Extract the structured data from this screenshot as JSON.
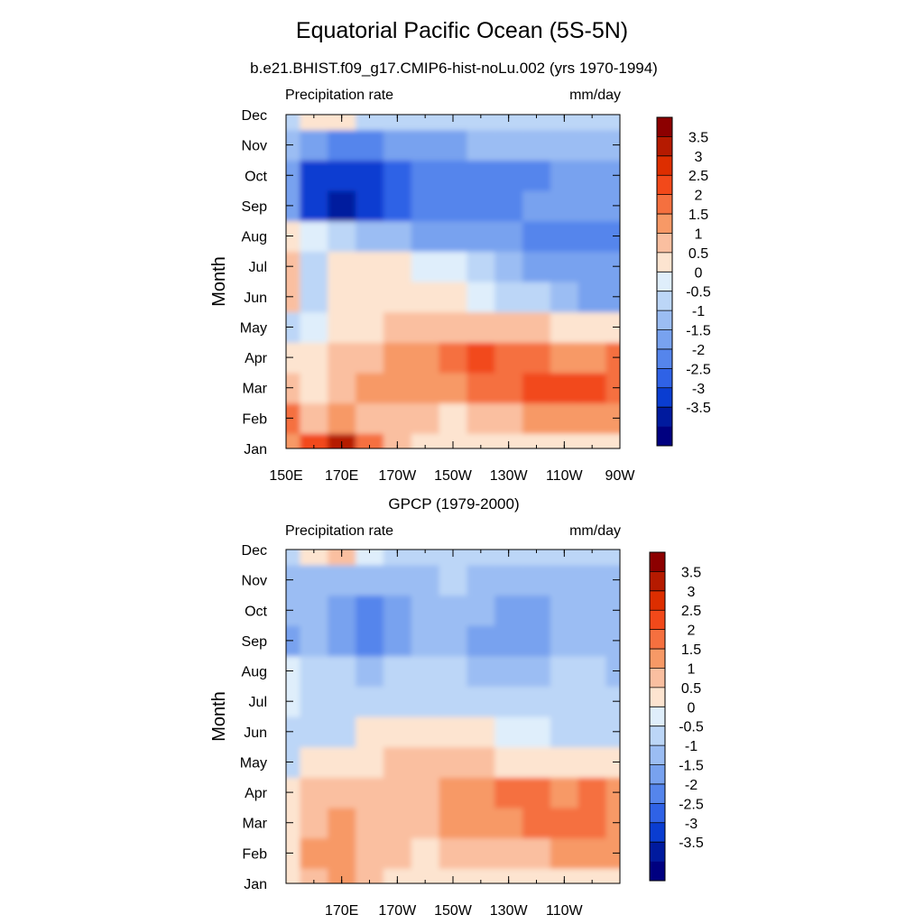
{
  "title": "Equatorial Pacific Ocean (5S-5N)",
  "colormap": {
    "levels": [
      "3.5",
      "3",
      "2.5",
      "2",
      "1.5",
      "1",
      "0.5",
      "0",
      "-0.5",
      "-1",
      "-1.5",
      "-2",
      "-2.5",
      "-3",
      "-3.5"
    ],
    "colors": [
      "#8c0000",
      "#b51a00",
      "#dd2e00",
      "#f2491a",
      "#f5703f",
      "#f79966",
      "#fabfa0",
      "#fde4d0",
      "#dfeefb",
      "#bcd6f7",
      "#9bbdf3",
      "#78a2ef",
      "#5585ec",
      "#2f62e6",
      "#0a3dd1",
      "#001a9e",
      "#000080"
    ]
  },
  "chart_data": [
    {
      "type": "heatmap",
      "subtitle": "b.e21.BHIST.f09_g17.CMIP6-hist-noLu.002 (yrs 1970-1994)",
      "left_label": "Precipitation rate",
      "right_label": "mm/day",
      "ylabel": "Month",
      "xlabel": "",
      "x_tick_labels": [
        "150E",
        "170E",
        "170W",
        "150W",
        "130W",
        "110W",
        "90W"
      ],
      "y_tick_labels": [
        "Jan",
        "Feb",
        "Mar",
        "Apr",
        "May",
        "Jun",
        "Jul",
        "Aug",
        "Sep",
        "Oct",
        "Nov",
        "Dec"
      ],
      "colorbar_labels": [
        "3.5",
        "3",
        "2.5",
        "2",
        "1.5",
        "1",
        "0.5",
        "0",
        "-0.5",
        "-1",
        "-1.5",
        "-2",
        "-2.5",
        "-3",
        "-3.5"
      ],
      "xlim": [
        150,
        270
      ],
      "x_units": "degrees east longitude",
      "x": [
        150,
        160,
        170,
        180,
        190,
        200,
        210,
        220,
        230,
        240,
        250,
        260,
        270
      ],
      "y": [
        "Jan",
        "Feb",
        "Mar",
        "Apr",
        "May",
        "Jun",
        "Jul",
        "Aug",
        "Sep",
        "Oct",
        "Nov",
        "Dec"
      ],
      "z": [
        [
          1.5,
          2.5,
          3.5,
          2.0,
          1.0,
          0.5,
          0.5,
          0.5,
          0.5,
          0.5,
          0.5,
          0.5,
          0.5
        ],
        [
          2.0,
          1.0,
          1.5,
          1.0,
          1.0,
          1.0,
          0.5,
          1.0,
          1.0,
          1.5,
          1.5,
          1.5,
          1.5
        ],
        [
          1.0,
          0.5,
          1.0,
          1.5,
          1.5,
          1.5,
          1.5,
          2.0,
          2.0,
          2.5,
          2.5,
          2.5,
          2.0
        ],
        [
          0.5,
          0.5,
          1.0,
          1.0,
          1.5,
          1.5,
          2.0,
          2.5,
          2.0,
          2.0,
          1.5,
          1.5,
          2.0
        ],
        [
          -0.5,
          0.0,
          0.5,
          0.5,
          1.0,
          1.0,
          1.0,
          1.0,
          1.0,
          1.0,
          0.5,
          0.5,
          0.5
        ],
        [
          1.0,
          -0.5,
          0.5,
          0.5,
          0.5,
          0.5,
          0.5,
          0.0,
          -0.5,
          -0.5,
          -1.0,
          -1.5,
          -1.5
        ],
        [
          1.0,
          -0.5,
          0.5,
          0.5,
          0.5,
          0.0,
          0.0,
          -0.5,
          -1.0,
          -1.5,
          -1.5,
          -1.5,
          -1.5
        ],
        [
          0.5,
          0.0,
          -0.5,
          -1.0,
          -1.0,
          -1.5,
          -1.5,
          -1.5,
          -1.5,
          -2.0,
          -2.0,
          -2.0,
          -2.0
        ],
        [
          -1.5,
          -3.0,
          -3.5,
          -3.0,
          -2.5,
          -2.0,
          -2.0,
          -2.0,
          -2.0,
          -1.5,
          -1.5,
          -1.5,
          -1.5
        ],
        [
          -1.5,
          -3.0,
          -3.0,
          -3.0,
          -2.5,
          -2.0,
          -2.0,
          -2.0,
          -2.0,
          -2.0,
          -1.5,
          -1.5,
          -1.5
        ],
        [
          -1.0,
          -1.5,
          -2.0,
          -2.0,
          -1.5,
          -1.5,
          -1.5,
          -1.0,
          -1.0,
          -1.0,
          -1.0,
          -1.0,
          -1.0
        ],
        [
          -0.5,
          0.5,
          0.5,
          -0.5,
          -0.5,
          -0.5,
          -0.5,
          -0.5,
          -0.5,
          -0.5,
          -0.5,
          -0.5,
          -0.5
        ]
      ]
    },
    {
      "type": "heatmap",
      "subtitle": "GPCP (1979-2000)",
      "left_label": "Precipitation rate",
      "right_label": "mm/day",
      "ylabel": "Month",
      "xlabel": "",
      "x_tick_labels": [
        "170E",
        "170W",
        "150W",
        "130W",
        "110W"
      ],
      "y_tick_labels": [
        "Jan",
        "Feb",
        "Mar",
        "Apr",
        "May",
        "Jun",
        "Jul",
        "Aug",
        "Sep",
        "Oct",
        "Nov",
        "Dec"
      ],
      "colorbar_labels": [
        "3.5",
        "3",
        "2.5",
        "2",
        "1.5",
        "1",
        "0.5",
        "0",
        "-0.5",
        "-1",
        "-1.5",
        "-2",
        "-2.5",
        "-3",
        "-3.5"
      ],
      "xlim": [
        150,
        270
      ],
      "x_units": "degrees east longitude",
      "x": [
        150,
        160,
        170,
        180,
        190,
        200,
        210,
        220,
        230,
        240,
        250,
        260,
        270
      ],
      "y": [
        "Jan",
        "Feb",
        "Mar",
        "Apr",
        "May",
        "Jun",
        "Jul",
        "Aug",
        "Sep",
        "Oct",
        "Nov",
        "Dec"
      ],
      "z": [
        [
          0.5,
          1.0,
          1.5,
          1.0,
          0.5,
          0.5,
          0.5,
          0.5,
          0.5,
          0.5,
          0.5,
          0.5,
          0.5
        ],
        [
          0.5,
          1.5,
          1.5,
          1.0,
          1.0,
          0.5,
          1.0,
          1.0,
          1.0,
          1.0,
          1.5,
          1.5,
          1.5
        ],
        [
          0.5,
          1.0,
          1.5,
          1.0,
          1.0,
          1.0,
          1.5,
          1.5,
          1.5,
          2.0,
          2.0,
          2.0,
          1.5
        ],
        [
          0.5,
          1.0,
          1.0,
          1.0,
          1.0,
          1.0,
          1.5,
          1.5,
          2.0,
          2.0,
          1.5,
          2.0,
          1.5
        ],
        [
          -0.5,
          0.5,
          0.5,
          0.5,
          1.0,
          1.0,
          1.0,
          1.0,
          0.5,
          0.5,
          0.5,
          0.5,
          0.5
        ],
        [
          -0.5,
          -0.5,
          -0.5,
          0.5,
          0.5,
          0.5,
          0.5,
          0.5,
          0.0,
          0.0,
          -0.5,
          -0.5,
          -0.5
        ],
        [
          0.0,
          -0.5,
          -0.5,
          -0.5,
          -0.5,
          -0.5,
          -0.5,
          -0.5,
          -0.5,
          -0.5,
          -0.5,
          -0.5,
          -0.5
        ],
        [
          0.0,
          -0.5,
          -0.5,
          -1.0,
          -0.5,
          -0.5,
          -0.5,
          -1.0,
          -1.0,
          -1.0,
          -0.5,
          -0.5,
          -1.0
        ],
        [
          -1.5,
          -1.0,
          -1.5,
          -2.0,
          -1.5,
          -1.0,
          -1.0,
          -1.5,
          -1.5,
          -1.5,
          -1.0,
          -1.0,
          -1.0
        ],
        [
          -1.0,
          -1.0,
          -1.5,
          -2.0,
          -1.5,
          -1.0,
          -1.0,
          -1.0,
          -1.5,
          -1.5,
          -1.0,
          -1.0,
          -1.0
        ],
        [
          -1.0,
          -1.0,
          -1.0,
          -1.0,
          -1.0,
          -1.0,
          -0.5,
          -1.0,
          -1.0,
          -1.0,
          -1.0,
          -1.0,
          -1.0
        ],
        [
          -0.5,
          0.5,
          1.0,
          0.0,
          -0.5,
          -0.5,
          -0.5,
          -0.5,
          -0.5,
          -0.5,
          -0.5,
          -0.5,
          -0.5
        ]
      ]
    }
  ]
}
